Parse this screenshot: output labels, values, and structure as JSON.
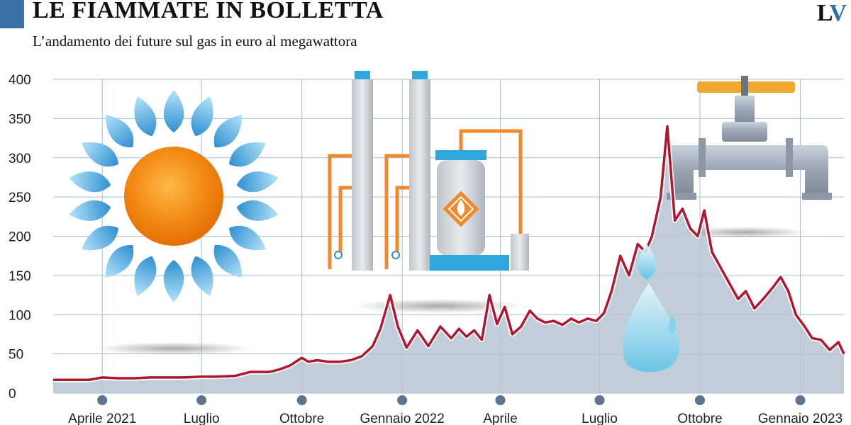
{
  "header": {
    "title": "LE FIAMMATE IN BOLLETTA",
    "subtitle": "L’andamento dei future sul gas in euro al megawattora",
    "logo_l": "L",
    "logo_v": "V"
  },
  "colors": {
    "accent": "#3a72a8",
    "line": "#b0172f",
    "area": "#b7c4d4",
    "grid": "#a9bcd0",
    "dot": "#5d7590"
  },
  "chart_data": {
    "type": "area",
    "title": "LE FIAMMATE IN BOLLETTA",
    "subtitle": "L’andamento dei future sul gas in euro al megawattora",
    "ylabel": "",
    "xlabel": "",
    "ylim": [
      0,
      400
    ],
    "yticks": [
      0,
      50,
      100,
      150,
      200,
      250,
      300,
      350,
      400
    ],
    "grid": true,
    "x_ticks": [
      "Aprile 2021",
      "Luglio",
      "Ottobre",
      "Gennaio 2022",
      "Aprile",
      "Luglio",
      "Ottobre",
      "Gennaio 2023"
    ],
    "x_range": [
      "2021-02-15",
      "2023-02-10"
    ],
    "series": [
      {
        "x": [
          "2021-02-15",
          "2021-03-10",
          "2021-03-20",
          "2021-04-01",
          "2021-04-15",
          "2021-05-01",
          "2021-05-15",
          "2021-06-01",
          "2021-06-15",
          "2021-07-01",
          "2021-07-15",
          "2021-08-01",
          "2021-08-15",
          "2021-09-01",
          "2021-09-10",
          "2021-09-20",
          "2021-10-01",
          "2021-10-07",
          "2021-10-15",
          "2021-10-25",
          "2021-11-05",
          "2021-11-15",
          "2021-11-25",
          "2021-12-05",
          "2021-12-12",
          "2021-12-21",
          "2021-12-28",
          "2022-01-05",
          "2022-01-15",
          "2022-01-25",
          "2022-02-05",
          "2022-02-15",
          "2022-02-22",
          "2022-03-01",
          "2022-03-08",
          "2022-03-15",
          "2022-03-22",
          "2022-03-29",
          "2022-04-05",
          "2022-04-12",
          "2022-04-20",
          "2022-04-28",
          "2022-05-05",
          "2022-05-12",
          "2022-05-20",
          "2022-05-28",
          "2022-06-05",
          "2022-06-12",
          "2022-06-20",
          "2022-06-28",
          "2022-07-05",
          "2022-07-12",
          "2022-07-20",
          "2022-07-28",
          "2022-08-05",
          "2022-08-12",
          "2022-08-18",
          "2022-08-26",
          "2022-09-01",
          "2022-09-08",
          "2022-09-15",
          "2022-09-22",
          "2022-09-29",
          "2022-10-05",
          "2022-10-12",
          "2022-10-20",
          "2022-10-28",
          "2022-11-05",
          "2022-11-12",
          "2022-11-20",
          "2022-11-28",
          "2022-12-07",
          "2022-12-14",
          "2022-12-21",
          "2022-12-28",
          "2023-01-05",
          "2023-01-12",
          "2023-01-20",
          "2023-01-28",
          "2023-02-05",
          "2023-02-10"
        ],
        "values": [
          17,
          17,
          17,
          20,
          19,
          19,
          20,
          20,
          20,
          21,
          21,
          22,
          27,
          27,
          30,
          35,
          45,
          40,
          42,
          40,
          40,
          42,
          47,
          60,
          82,
          125,
          85,
          58,
          80,
          60,
          85,
          70,
          82,
          72,
          80,
          68,
          125,
          88,
          110,
          75,
          85,
          105,
          95,
          90,
          92,
          87,
          95,
          90,
          95,
          92,
          102,
          130,
          175,
          150,
          190,
          180,
          200,
          250,
          340,
          220,
          235,
          210,
          200,
          233,
          180,
          160,
          140,
          120,
          130,
          108,
          120,
          135,
          148,
          130,
          100,
          85,
          70,
          68,
          55,
          65,
          50
        ]
      }
    ]
  }
}
